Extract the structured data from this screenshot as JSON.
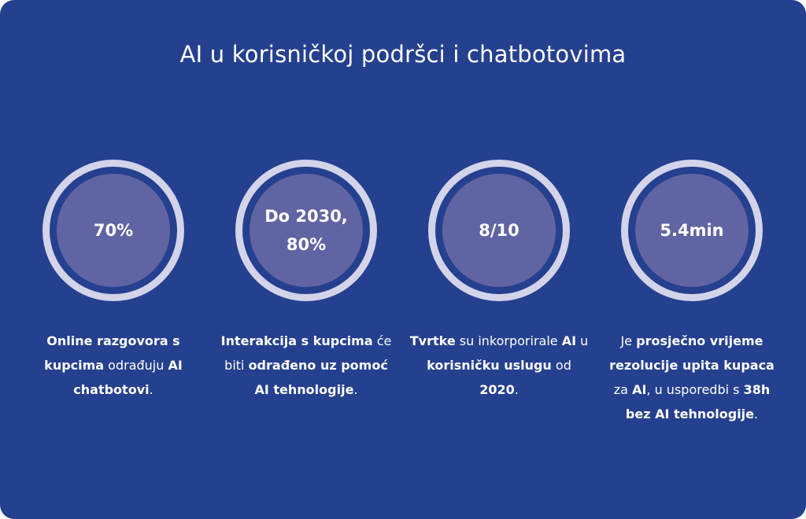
{
  "title": "AI u korisničkoj podršci i chatbotovima",
  "stats": [
    {
      "value": "70%",
      "desc": [
        {
          "t": "Online razgovora s kupcima",
          "b": true
        },
        {
          "t": " odrađuju ",
          "b": false
        },
        {
          "t": "AI chatbotovi",
          "b": true
        },
        {
          "t": ".",
          "b": false
        }
      ]
    },
    {
      "value": "Do 2030, 80%",
      "desc": [
        {
          "t": "Interakcija s kupcima",
          "b": true
        },
        {
          "t": " će biti ",
          "b": false
        },
        {
          "t": "odrađeno uz pomoć AI tehnologije",
          "b": true
        },
        {
          "t": ".",
          "b": false
        }
      ]
    },
    {
      "value": "8/10",
      "desc": [
        {
          "t": "Tvrtke",
          "b": true
        },
        {
          "t": " su inkorporirale ",
          "b": false
        },
        {
          "t": "AI",
          "b": true
        },
        {
          "t": " u ",
          "b": false
        },
        {
          "t": "korisničku uslugu",
          "b": true
        },
        {
          "t": " od ",
          "b": false
        },
        {
          "t": "2020",
          "b": true
        },
        {
          "t": ".",
          "b": false
        }
      ]
    },
    {
      "value": "5.4min",
      "desc": [
        {
          "t": "Je ",
          "b": false
        },
        {
          "t": "prosječno vrijeme rezolucije upita kupaca",
          "b": true
        },
        {
          "t": " za ",
          "b": false
        },
        {
          "t": "AI",
          "b": true
        },
        {
          "t": ", u usporedbi s ",
          "b": false
        },
        {
          "t": "38h bez AI tehnologije",
          "b": true
        },
        {
          "t": ".",
          "b": false
        }
      ]
    }
  ],
  "colors": {
    "background": "#25408f",
    "ring": "#d3d3ea",
    "disc": "#6164a3",
    "text": "#ffffff"
  }
}
